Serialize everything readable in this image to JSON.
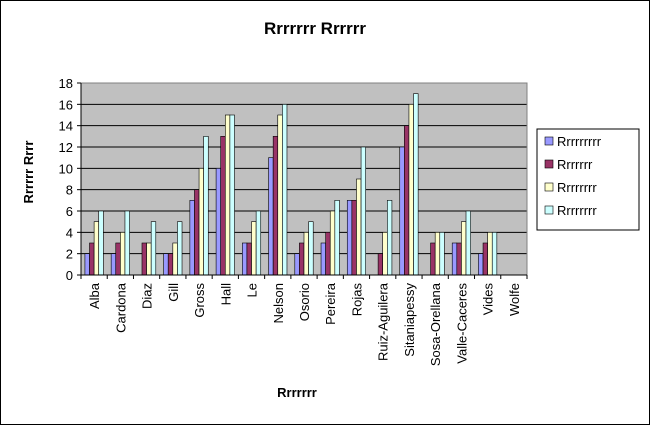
{
  "chart_data": {
    "type": "bar",
    "title": "Rrrrrrr Rrrrrr",
    "xlabel": "Rrrrrrr",
    "ylabel": "Rrrrrr Rrrr",
    "ylim": [
      0,
      18
    ],
    "yticks": [
      0,
      2,
      4,
      6,
      8,
      10,
      12,
      14,
      16,
      18
    ],
    "grid": true,
    "legend_position": "right",
    "plot_background": "#c0c0c0",
    "categories": [
      "Alba",
      "Cardona",
      "Diaz",
      "Gill",
      "Gross",
      "Hall",
      "Le",
      "Nelson",
      "Osorio",
      "Pereira",
      "Rojas",
      "Ruiz-Aguilera",
      "Sitaniapessy",
      "Sosa-Orellana",
      "Valle-Caceres",
      "Vides",
      "Wolfe"
    ],
    "series": [
      {
        "name": "Rrrrrrrrr",
        "color": "#9999ff",
        "values": [
          2,
          2,
          0,
          2,
          7,
          10,
          3,
          11,
          2,
          3,
          7,
          0,
          12,
          0,
          3,
          2,
          0
        ]
      },
      {
        "name": "Rrrrrrr",
        "color": "#993366",
        "values": [
          3,
          3,
          3,
          2,
          8,
          13,
          3,
          13,
          3,
          4,
          7,
          2,
          14,
          3,
          3,
          3,
          0
        ]
      },
      {
        "name": "Rrrrrrrr",
        "color": "#ffffcc",
        "values": [
          5,
          4,
          3,
          3,
          10,
          15,
          5,
          15,
          4,
          6,
          9,
          4,
          16,
          4,
          5,
          4,
          0
        ]
      },
      {
        "name": "Rrrrrrrr",
        "color": "#ccffff",
        "values": [
          6,
          6,
          5,
          5,
          13,
          15,
          6,
          16,
          5,
          7,
          12,
          7,
          17,
          4,
          6,
          4,
          0
        ]
      }
    ]
  }
}
